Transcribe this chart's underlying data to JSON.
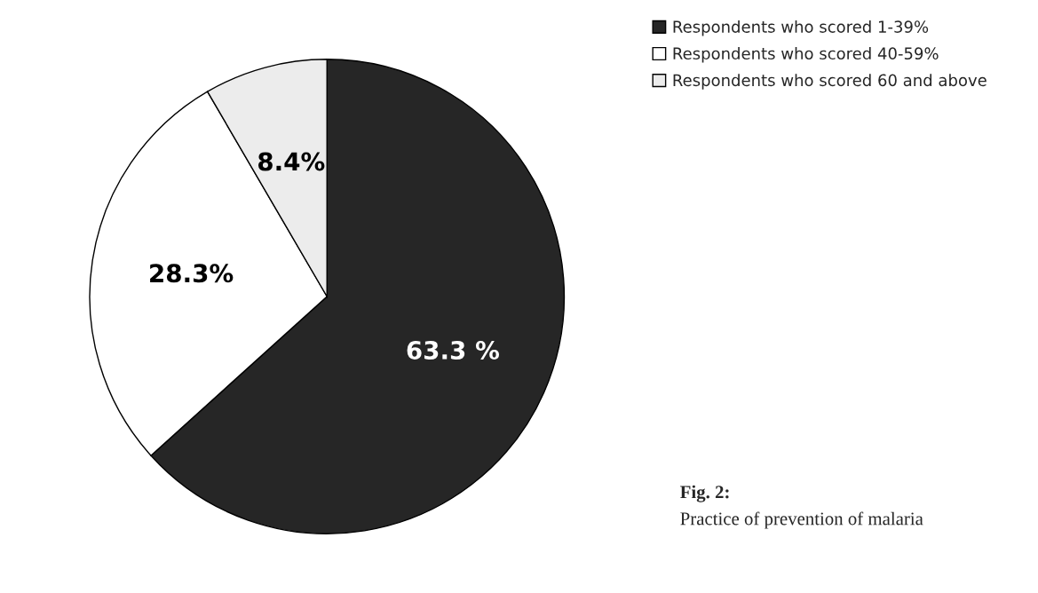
{
  "chart_data": {
    "type": "pie",
    "title": "Fig. 2:",
    "subtitle": "Practice of prevention of malaria",
    "categories": [
      "Respondents who scored 1-39%",
      "Respondents who scored 40-59%",
      "Respondents who scored 60 and above"
    ],
    "values": [
      63.3,
      28.3,
      8.4
    ],
    "value_labels": [
      "63.3 %",
      "28.3%",
      "8.4%"
    ],
    "colors": [
      "#262626",
      "#ffffff",
      "#ececec"
    ],
    "legend": "top right"
  }
}
